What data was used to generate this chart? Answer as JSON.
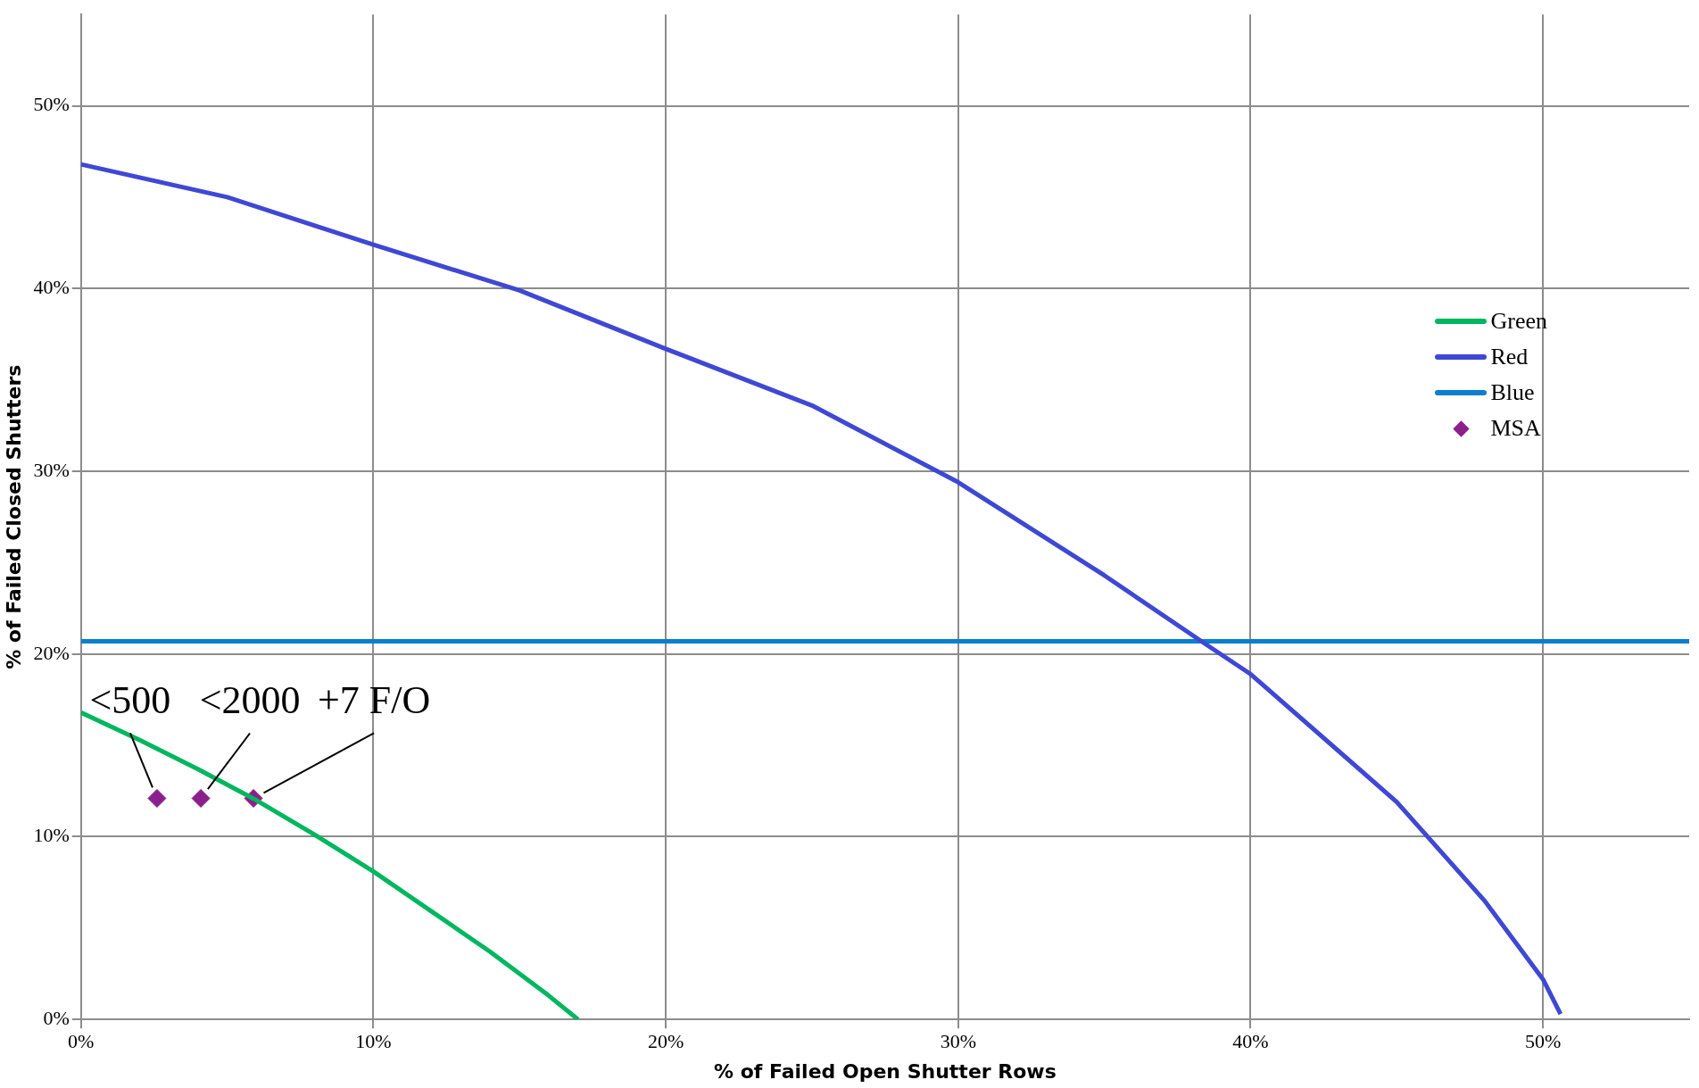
{
  "chart_data": {
    "type": "line",
    "xlabel": "% of Failed Open Shutter Rows",
    "ylabel": "% of Failed Closed Shutters",
    "xlim": [
      0,
      55
    ],
    "ylim": [
      0,
      55
    ],
    "xticks": [
      {
        "value": 0,
        "label": "0%"
      },
      {
        "value": 10,
        "label": "10%"
      },
      {
        "value": 20,
        "label": "20%"
      },
      {
        "value": 30,
        "label": "30%"
      },
      {
        "value": 40,
        "label": "40%"
      },
      {
        "value": 50,
        "label": "50%"
      }
    ],
    "yticks": [
      {
        "value": 0,
        "label": "0%"
      },
      {
        "value": 10,
        "label": "10%"
      },
      {
        "value": 20,
        "label": "20%"
      },
      {
        "value": 30,
        "label": "30%"
      },
      {
        "value": 40,
        "label": "40%"
      },
      {
        "value": 50,
        "label": "50%"
      }
    ],
    "grid": true,
    "legend": "right",
    "series": [
      {
        "name": "Green",
        "type": "line",
        "color": "#00b65f",
        "x": [
          0,
          2,
          4,
          6,
          8,
          10,
          12,
          14,
          16,
          17
        ],
        "values": [
          16.8,
          15.3,
          13.7,
          12.0,
          10.1,
          8.1,
          5.9,
          3.7,
          1.3,
          0
        ]
      },
      {
        "name": "Red",
        "type": "line",
        "color": "#3f48d4",
        "x": [
          0,
          5,
          10,
          15,
          20,
          25,
          30,
          35,
          38.5,
          40,
          45,
          48,
          50,
          50.6
        ],
        "values": [
          46.8,
          45.0,
          42.4,
          39.9,
          36.7,
          33.6,
          29.4,
          24.3,
          20.5,
          18.9,
          11.9,
          6.5,
          2.2,
          0.3
        ]
      },
      {
        "name": "Blue",
        "type": "line",
        "color": "#0a7fcc",
        "x": [
          0,
          55
        ],
        "values": [
          20.7,
          20.7
        ]
      },
      {
        "name": "MSA",
        "type": "scatter",
        "color": "#8b1f8c",
        "marker": "diamond",
        "x": [
          2.6,
          4.1,
          5.9
        ],
        "values": [
          12.1,
          12.1,
          12.1
        ]
      }
    ],
    "annotations": [
      {
        "text": "<500",
        "x": 2.6,
        "y": 12.1
      },
      {
        "text": "<2000",
        "x": 4.1,
        "y": 12.1
      },
      {
        "text": "+7 F/O",
        "x": 5.9,
        "y": 12.1
      }
    ]
  }
}
